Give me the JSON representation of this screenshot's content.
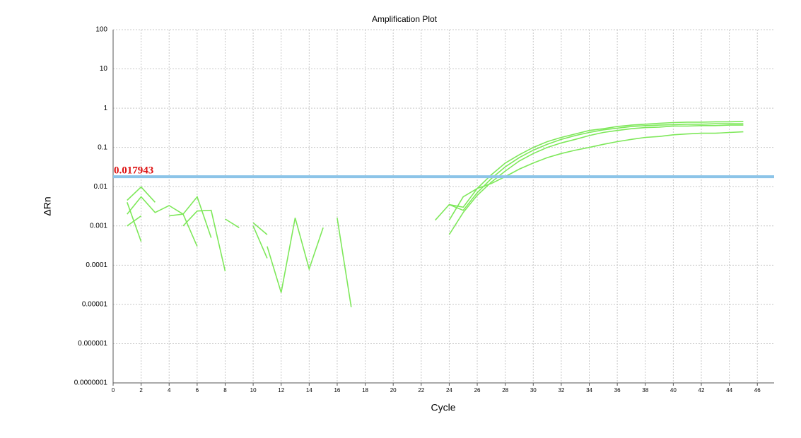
{
  "chart_data": {
    "type": "line",
    "title": "Amplification Plot",
    "x_label": "Cycle",
    "y_label": "ΔRn",
    "log_y": true,
    "grid": true,
    "xlim": [
      0,
      47.2
    ],
    "xticks": [
      0,
      2,
      4,
      6,
      8,
      10,
      12,
      14,
      16,
      18,
      20,
      22,
      24,
      26,
      28,
      30,
      32,
      34,
      36,
      38,
      40,
      42,
      44,
      46
    ],
    "ylim": [
      1e-07,
      100
    ],
    "yticks": [
      100,
      10,
      1,
      0.1,
      0.01,
      0.001,
      0.0001,
      1e-05,
      1e-06,
      {
        "value": 1e-07,
        "label": "0.0000001"
      }
    ],
    "threshold": 0.017943,
    "threshold_color": "#8cc4e8",
    "threshold_label_color": "#dd1111",
    "x": [
      1,
      2,
      3,
      4,
      5,
      6,
      7,
      8,
      9,
      10,
      11,
      12,
      13,
      14,
      15,
      16,
      17,
      18,
      19,
      20,
      21,
      22,
      23,
      24,
      25,
      26,
      27,
      28,
      29,
      30,
      31,
      32,
      33,
      34,
      35,
      36,
      37,
      38,
      39,
      40,
      41,
      42,
      43,
      44,
      45
    ],
    "series": [
      {
        "color": "#7ee85a",
        "values": [
          0.0045,
          0.0098,
          0.004,
          null,
          null,
          null,
          null,
          null,
          null,
          null,
          null,
          null,
          null,
          null,
          null,
          null,
          null,
          null,
          null,
          null,
          null,
          null,
          0.0014,
          0.0035,
          0.003,
          0.009,
          0.02,
          0.04,
          0.065,
          0.1,
          0.14,
          0.18,
          0.22,
          0.27,
          0.3,
          0.34,
          0.37,
          0.39,
          0.41,
          0.43,
          0.44,
          0.44,
          0.45,
          0.45,
          0.46
        ]
      },
      {
        "color": "#7ee85a",
        "values": [
          0.002,
          0.0055,
          0.0022,
          0.0033,
          0.002,
          0.0055,
          0.0005,
          null,
          null,
          null,
          null,
          null,
          null,
          null,
          null,
          null,
          null,
          null,
          null,
          null,
          null,
          null,
          null,
          0.0035,
          0.0025,
          0.007,
          0.016,
          0.032,
          0.055,
          0.085,
          0.12,
          0.16,
          0.2,
          0.24,
          0.28,
          0.31,
          0.34,
          0.36,
          0.37,
          0.38,
          0.39,
          0.39,
          0.4,
          0.4,
          0.4
        ]
      },
      {
        "color": "#7ee85a",
        "values": [
          0.001,
          0.0018,
          null,
          0.0018,
          0.002,
          0.0003,
          null,
          0.0015,
          0.0009,
          null,
          null,
          null,
          null,
          null,
          null,
          null,
          null,
          null,
          null,
          null,
          null,
          null,
          null,
          0.0006,
          0.0022,
          0.006,
          0.013,
          0.025,
          0.045,
          0.07,
          0.1,
          0.13,
          0.16,
          0.2,
          0.24,
          0.27,
          0.3,
          0.32,
          0.33,
          0.35,
          0.35,
          0.36,
          0.36,
          0.37,
          0.37
        ]
      },
      {
        "color": "#7ee85a",
        "values": [
          0.004,
          0.0004,
          null,
          null,
          0.001,
          0.0024,
          0.0025,
          7e-05,
          null,
          0.0012,
          0.0006,
          null,
          null,
          null,
          null,
          null,
          null,
          null,
          null,
          null,
          null,
          null,
          null,
          0.0014,
          0.0055,
          0.009,
          0.012,
          0.018,
          0.028,
          0.04,
          0.055,
          0.07,
          0.085,
          0.1,
          0.12,
          0.14,
          0.16,
          0.18,
          0.19,
          0.21,
          0.22,
          0.23,
          0.23,
          0.24,
          0.25
        ]
      },
      {
        "color": "#7ee85a",
        "values": [
          null,
          null,
          null,
          null,
          null,
          null,
          null,
          null,
          null,
          0.001,
          0.00015,
          null,
          null,
          null,
          null,
          0.0016,
          8.5e-06,
          null,
          null,
          null,
          null,
          null,
          null,
          null,
          null,
          null,
          null,
          null,
          null,
          null,
          null,
          null,
          null,
          null,
          null,
          null,
          null,
          null,
          null,
          null,
          null,
          null,
          null,
          null,
          null
        ]
      },
      {
        "color": "#7ee85a",
        "values": [
          null,
          null,
          null,
          null,
          null,
          null,
          null,
          null,
          null,
          null,
          0.0003,
          2e-05,
          0.0016,
          8e-05,
          0.0009,
          null,
          null,
          null,
          null,
          null,
          null,
          null,
          null,
          null,
          null,
          null,
          null,
          null,
          null,
          null,
          null,
          null,
          null,
          null,
          null,
          null,
          null,
          null,
          null,
          null,
          null,
          null,
          null,
          null,
          null
        ]
      }
    ]
  }
}
